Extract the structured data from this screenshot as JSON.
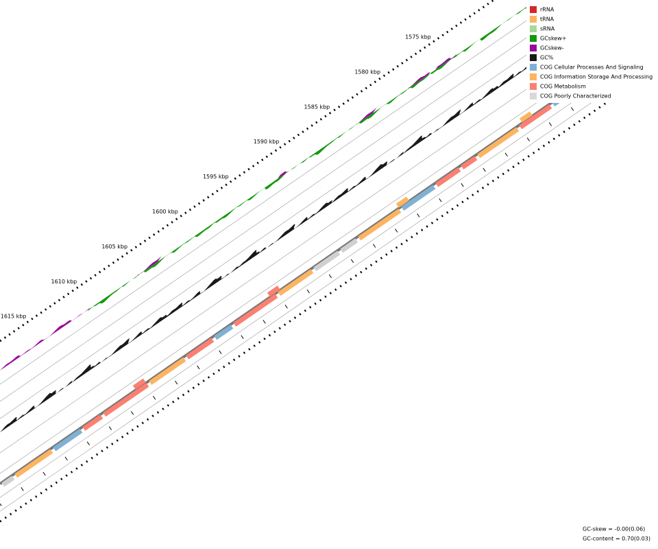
{
  "ticks": [
    "1575 kbp",
    "1580 kbp",
    "1585 kbp",
    "1590 kbp",
    "1595 kbp",
    "1600 kbp",
    "1605 kbp",
    "1610 kbp",
    "1615 kbp"
  ],
  "legend": [
    {
      "label": "rRNA",
      "color": "#d62728"
    },
    {
      "label": "tRNA",
      "color": "#fdb462"
    },
    {
      "label": "sRNA",
      "color": "#a6d99a"
    },
    {
      "label": "GCskew+",
      "color": "#129a0c"
    },
    {
      "label": "GCskew-",
      "color": "#980b9d"
    },
    {
      "label": "GC%",
      "color": "#1a1a1a"
    },
    {
      "label": "COG Cellular Processes And Signaling",
      "color": "#80b1d3"
    },
    {
      "label": "COG Information Storage And Processing",
      "color": "#fdb462"
    },
    {
      "label": "COG Metabolism",
      "color": "#fb8072"
    },
    {
      "label": "COG Poorly Characterized",
      "color": "#d9d9d9"
    }
  ],
  "stats": {
    "gc_skew": "GC-skew = -0.00(0.06)",
    "gc_content": "GC-content = 0.70(0.03)"
  }
}
